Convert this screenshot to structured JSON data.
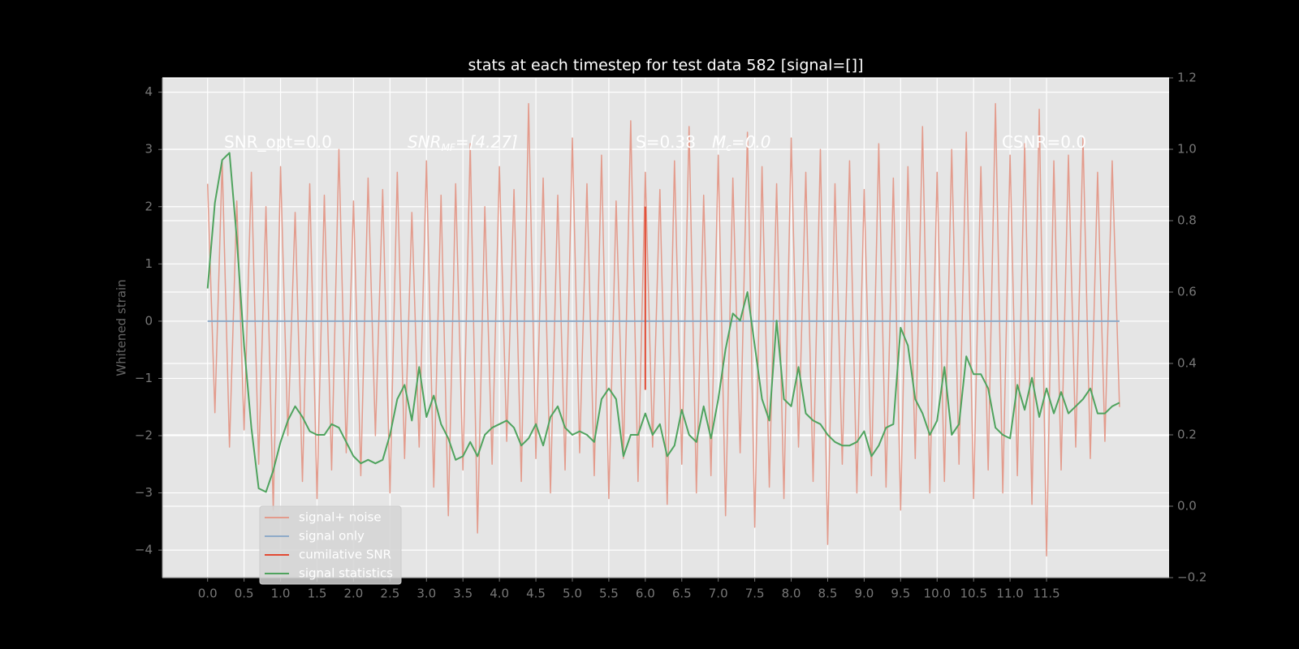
{
  "chart_data": {
    "type": "line",
    "title": "stats at each timestep for test data 582 [signal=[]]",
    "ylabel": "Whitened strain",
    "annotations": [
      [
        "SNR_opt=0.0"
      ],
      [
        "SNR",
        "MF",
        "=[4.27]"
      ],
      [
        "S=0.38"
      ],
      [
        "M",
        "c",
        "=0.0"
      ],
      [
        "CSNR=0.0"
      ]
    ],
    "x": [
      0,
      0.1,
      0.2,
      0.3,
      0.4,
      0.5,
      0.6,
      0.7,
      0.8,
      0.9,
      1,
      1.1,
      1.2,
      1.3,
      1.4,
      1.5,
      1.6,
      1.7,
      1.8,
      1.9,
      2,
      2.1,
      2.2,
      2.3,
      2.4,
      2.5,
      2.6,
      2.7,
      2.8,
      2.9,
      3,
      3.1,
      3.2,
      3.3,
      3.4,
      3.5,
      3.6,
      3.7,
      3.8,
      3.9,
      4,
      4.1,
      4.2,
      4.3,
      4.4,
      4.5,
      4.6,
      4.7,
      4.8,
      4.9,
      5,
      5.1,
      5.2,
      5.3,
      5.4,
      5.5,
      5.6,
      5.7,
      5.8,
      5.9,
      6,
      6.1,
      6.2,
      6.3,
      6.4,
      6.5,
      6.6,
      6.7,
      6.8,
      6.9,
      7,
      7.1,
      7.2,
      7.3,
      7.4,
      7.5,
      7.6,
      7.7,
      7.8,
      7.9,
      8,
      8.1,
      8.2,
      8.3,
      8.4,
      8.5,
      8.6,
      8.7,
      8.8,
      8.9,
      9,
      9.1,
      9.2,
      9.3,
      9.4,
      9.5,
      9.6,
      9.7,
      9.8,
      9.9,
      10,
      10.1,
      10.2,
      10.3,
      10.4,
      10.5,
      10.6,
      10.7,
      10.8,
      10.9,
      11,
      11.1,
      11.2,
      11.3,
      11.4,
      11.5,
      11.6,
      11.7,
      11.8,
      11.9,
      12,
      12.1,
      12.2,
      12.3,
      12.4,
      12.5
    ],
    "series": [
      {
        "name": "signal+ noise",
        "color": "#e39b8c",
        "values": [
          2.4,
          -1.6,
          2.8,
          -2.2,
          2.1,
          -1.9,
          2.6,
          -2.5,
          2.0,
          -3.3,
          2.7,
          -2.0,
          1.9,
          -2.8,
          2.4,
          -3.1,
          2.2,
          -2.6,
          3.0,
          -2.3,
          2.1,
          -2.7,
          2.5,
          -2.0,
          2.3,
          -3.0,
          2.6,
          -2.4,
          1.9,
          -2.2,
          2.8,
          -2.9,
          2.2,
          -3.4,
          2.4,
          -2.6,
          3.1,
          -3.7,
          2.0,
          -2.5,
          2.7,
          -2.1,
          2.3,
          -2.8,
          3.8,
          -2.4,
          2.5,
          -3.0,
          2.2,
          -2.6,
          3.2,
          -2.3,
          2.4,
          -2.7,
          2.9,
          -3.1,
          2.1,
          -2.4,
          3.5,
          -2.8,
          2.6,
          -2.2,
          2.3,
          -3.2,
          2.8,
          -2.5,
          3.4,
          -3.0,
          2.2,
          -2.7,
          2.9,
          -3.4,
          2.5,
          -2.3,
          3.3,
          -3.6,
          2.7,
          -2.9,
          2.4,
          -3.1,
          3.2,
          -2.2,
          2.6,
          -2.8,
          3.0,
          -3.9,
          2.4,
          -2.5,
          2.8,
          -3.0,
          2.3,
          -2.7,
          3.1,
          -2.9,
          2.5,
          -3.3,
          2.7,
          -2.4,
          3.4,
          -3.0,
          2.6,
          -2.8,
          3.0,
          -2.5,
          3.3,
          -3.1,
          2.7,
          -2.6,
          3.8,
          -3.0,
          2.9,
          -2.7,
          3.1,
          -3.2,
          3.7,
          -4.1,
          2.8,
          -2.6,
          2.9,
          -2.2,
          3.2,
          -2.4,
          2.6,
          -2.1,
          2.8,
          -1.5
        ]
      },
      {
        "name": "signal only",
        "color": "#8eaac8",
        "x": [
          0,
          12.5
        ],
        "values": [
          0,
          0
        ]
      },
      {
        "name": "cumilative SNR",
        "color": "#e24a33",
        "x": [
          6.0,
          6.0
        ],
        "values": [
          2.0,
          -1.2
        ]
      },
      {
        "name": "signal statistics",
        "color": "#4fa35e",
        "axis": "y2",
        "values": [
          0.61,
          0.85,
          0.97,
          0.99,
          0.75,
          0.45,
          0.22,
          0.05,
          0.04,
          0.1,
          0.18,
          0.24,
          0.28,
          0.25,
          0.21,
          0.2,
          0.2,
          0.23,
          0.22,
          0.18,
          0.14,
          0.12,
          0.13,
          0.12,
          0.13,
          0.2,
          0.3,
          0.34,
          0.24,
          0.39,
          0.25,
          0.31,
          0.23,
          0.19,
          0.13,
          0.14,
          0.18,
          0.14,
          0.2,
          0.22,
          0.23,
          0.24,
          0.22,
          0.17,
          0.19,
          0.23,
          0.17,
          0.25,
          0.28,
          0.22,
          0.2,
          0.21,
          0.2,
          0.18,
          0.3,
          0.33,
          0.3,
          0.14,
          0.2,
          0.2,
          0.26,
          0.2,
          0.23,
          0.14,
          0.17,
          0.27,
          0.2,
          0.18,
          0.28,
          0.19,
          0.3,
          0.44,
          0.54,
          0.52,
          0.6,
          0.45,
          0.3,
          0.24,
          0.52,
          0.3,
          0.28,
          0.39,
          0.26,
          0.24,
          0.23,
          0.2,
          0.18,
          0.17,
          0.17,
          0.18,
          0.21,
          0.14,
          0.17,
          0.22,
          0.23,
          0.5,
          0.45,
          0.3,
          0.26,
          0.2,
          0.24,
          0.39,
          0.2,
          0.23,
          0.42,
          0.37,
          0.37,
          0.33,
          0.22,
          0.2,
          0.19,
          0.34,
          0.27,
          0.36,
          0.25,
          0.33,
          0.26,
          0.32,
          0.26,
          0.28,
          0.3,
          0.33,
          0.26,
          0.26,
          0.28,
          0.29
        ]
      }
    ],
    "xlim": [
      -0.62,
      13.18
    ],
    "xticks": [
      {
        "value": 0,
        "label": "0.0"
      },
      0.5,
      {
        "value": 1,
        "label": "1.0"
      },
      1.5,
      {
        "value": 2,
        "label": "2.0"
      },
      2.5,
      {
        "value": 3,
        "label": "3.0"
      },
      3.5,
      {
        "value": 4,
        "label": "4.0"
      },
      4.5,
      {
        "value": 5,
        "label": "5.0"
      },
      5.5,
      {
        "value": 6,
        "label": "6.0"
      },
      6.5,
      {
        "value": 7,
        "label": "7.0"
      },
      7.5,
      {
        "value": 8,
        "label": "8.0"
      },
      8.5,
      {
        "value": 9,
        "label": "9.0"
      },
      9.5,
      {
        "value": 10,
        "label": "10.0"
      },
      10.5,
      {
        "value": 11,
        "label": "11.0"
      },
      11.5
    ],
    "ylim": [
      -4.48,
      4.25
    ],
    "yticks": [
      {
        "value": -4,
        "label": "−4"
      },
      {
        "value": -3,
        "label": "−3"
      },
      {
        "value": -2,
        "label": "−2"
      },
      {
        "value": -1,
        "label": "−1"
      },
      0,
      1,
      2,
      3,
      4
    ],
    "y2lim": [
      -0.2,
      1.2
    ],
    "y2ticks": [
      {
        "value": -0.2,
        "label": "−0.2"
      },
      {
        "value": 0,
        "label": "0.0"
      },
      0.2,
      0.4,
      0.6,
      0.8,
      {
        "value": 1,
        "label": "1.0"
      },
      1.2
    ],
    "grid": true,
    "legend": "lower left"
  }
}
